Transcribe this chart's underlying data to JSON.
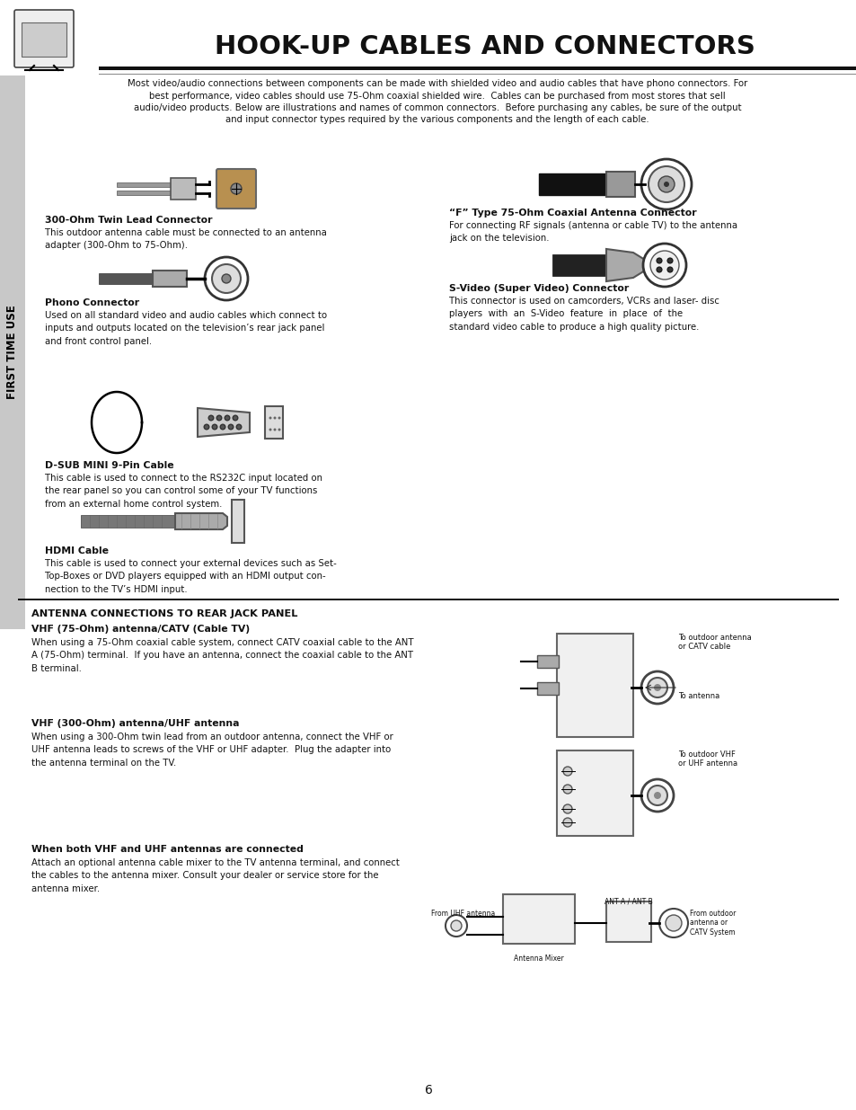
{
  "title": "HOOK-UP CABLES AND CONNECTORS",
  "sidebar_text": "FIRST TIME USE",
  "bg_color": "#ffffff",
  "text_color": "#000000",
  "page_number": "6",
  "intro_lines": [
    "Most video/audio connections between components can be made with shielded video and audio cables that have phono connectors. For",
    "best performance, video cables should use 75-Ohm coaxial shielded wire.  Cables can be purchased from most stores that sell",
    "audio/video products. Below are illustrations and names of common connectors.  Before purchasing any cables, be sure of the output",
    "and input connector types required by the various components and the length of each cable."
  ],
  "sec_300ohm_label": "300-Ohm Twin Lead Connector",
  "sec_300ohm_body": "This outdoor antenna cable must be connected to an antenna\nadapter (300-Ohm to 75-Ohm).",
  "sec_ftype_label": "“F” Type 75-Ohm Coaxial Antenna Connector",
  "sec_ftype_body": "For connecting RF signals (antenna or cable TV) to the antenna\njack on the television.",
  "sec_phono_label": "Phono Connector",
  "sec_phono_body": "Used on all standard video and audio cables which connect to\ninputs and outputs located on the television’s rear jack panel\nand front control panel.",
  "sec_svideo_label": "S-Video (Super Video) Connector",
  "sec_svideo_body": "This connector is used on camcorders, VCRs and laser- disc\nplayers  with  an  S-Video  feature  in  place  of  the\nstandard video cable to produce a high quality picture.",
  "sec_dsub_label": "D-SUB MINI 9-Pin Cable",
  "sec_dsub_body": "This cable is used to connect to the RS232C input located on\nthe rear panel so you can control some of your TV functions\nfrom an external home control system.",
  "sec_hdmi_label": "HDMI Cable",
  "sec_hdmi_body": "This cable is used to connect your external devices such as Set-\nTop-Boxes or DVD players equipped with an HDMI output con-\nnection to the TV’s HDMI input.",
  "ant_header": "ANTENNA CONNECTIONS TO REAR JACK PANEL",
  "ant_sub1_label": "VHF (75-Ohm) antenna/CATV (Cable TV)",
  "ant_sub1_body": "When using a 75-Ohm coaxial cable system, connect CATV coaxial cable to the ANT\nA (75-Ohm) terminal.  If you have an antenna, connect the coaxial cable to the ANT\nB terminal.",
  "ant_sub2_label": "VHF (300-Ohm) antenna/UHF antenna",
  "ant_sub2_body": "When using a 300-Ohm twin lead from an outdoor antenna, connect the VHF or\nUHF antenna leads to screws of the VHF or UHF adapter.  Plug the adapter into\nthe antenna terminal on the TV.",
  "ant_sub3_label": "When both VHF and UHF antennas are connected",
  "ant_sub3_body": "Attach an optional antenna cable mixer to the TV antenna terminal, and connect\nthe cables to the antenna mixer. Consult your dealer or service store for the\nantenna mixer.",
  "diag1_label1": "To outdoor antenna\nor CATV cable",
  "diag1_label2": "To antenna",
  "diag2_label": "To outdoor VHF\nor UHF antenna",
  "diag3_label1": "From UHF antenna",
  "diag3_label2": "ANT A / ANT B",
  "diag3_label3": "From outdoor\nantenna or\nCATV System",
  "diag3_label4": "Antenna Mixer"
}
